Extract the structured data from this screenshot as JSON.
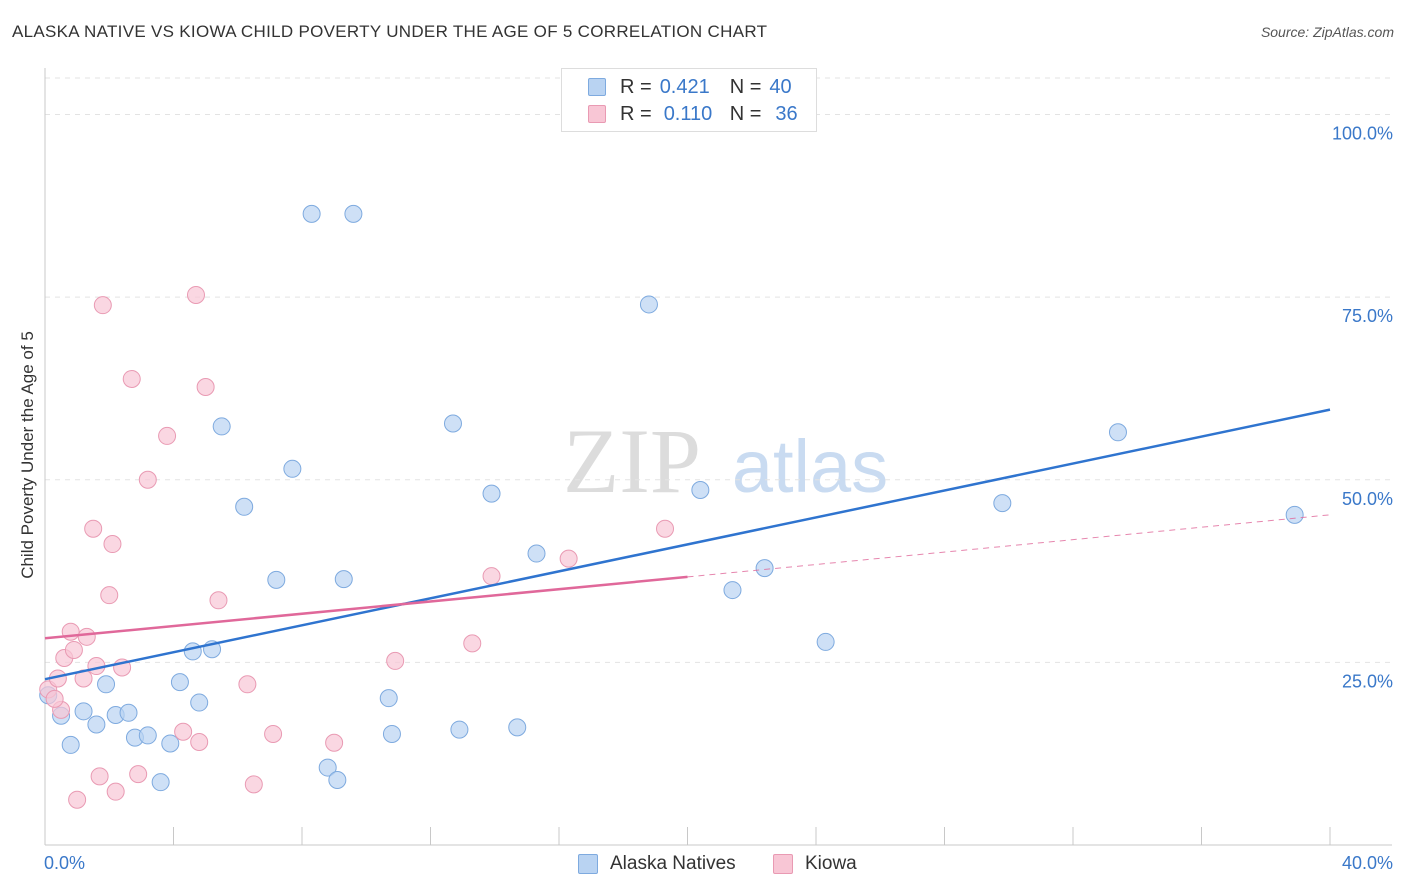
{
  "title": "ALASKA NATIVE VS KIOWA CHILD POVERTY UNDER THE AGE OF 5 CORRELATION CHART",
  "source": "Source: ZipAtlas.com",
  "watermark": {
    "zip": "ZIP",
    "atlas": "atlas"
  },
  "legend": {
    "rows": [
      {
        "r_label": "R =",
        "r_value": "0.421",
        "n_label": "N =",
        "n_value": "40"
      },
      {
        "r_label": "R =",
        "r_value": "0.110",
        "n_label": "N =",
        "n_value": "36"
      }
    ]
  },
  "colors": {
    "blue_fill": "#b9d3f2",
    "blue_stroke": "#7eaadf",
    "blue_line": "#2f74cf",
    "pink_fill": "#f8c6d5",
    "pink_stroke": "#e99ab3",
    "pink_line": "#e0689a",
    "axis_label": "#3a78c9"
  },
  "chart_data": {
    "type": "scatter",
    "title": "ALASKA NATIVE VS KIOWA CHILD POVERTY UNDER THE AGE OF 5 CORRELATION CHART",
    "xlabel": "",
    "ylabel": "Child Poverty Under the Age of 5",
    "xlim": [
      0,
      40
    ],
    "ylim": [
      0,
      105
    ],
    "x_tick_labels": [
      "0.0%",
      "40.0%"
    ],
    "y_ticks": [
      25,
      50,
      75,
      100
    ],
    "y_tick_labels": [
      "25.0%",
      "50.0%",
      "75.0%",
      "100.0%"
    ],
    "grid": true,
    "legend_position": "bottom-center",
    "series": [
      {
        "name": "Alaska Natives",
        "r": 0.421,
        "n": 40,
        "trend": {
          "x0": 0,
          "y0": 22.7,
          "x1": 40,
          "y1": 59.6
        },
        "points": [
          [
            0.1,
            20.5
          ],
          [
            0.5,
            17.7
          ],
          [
            0.8,
            13.7
          ],
          [
            1.2,
            18.3
          ],
          [
            1.6,
            16.5
          ],
          [
            1.9,
            22.0
          ],
          [
            2.2,
            17.8
          ],
          [
            2.6,
            18.1
          ],
          [
            2.8,
            14.7
          ],
          [
            3.2,
            15.0
          ],
          [
            3.6,
            8.6
          ],
          [
            3.9,
            13.9
          ],
          [
            4.2,
            22.3
          ],
          [
            4.6,
            26.5
          ],
          [
            4.8,
            19.5
          ],
          [
            5.2,
            26.8
          ],
          [
            5.5,
            57.3
          ],
          [
            6.2,
            46.3
          ],
          [
            7.2,
            36.3
          ],
          [
            7.7,
            51.5
          ],
          [
            8.3,
            86.4
          ],
          [
            8.8,
            10.6
          ],
          [
            9.1,
            8.9
          ],
          [
            9.3,
            36.4
          ],
          [
            9.6,
            86.4
          ],
          [
            10.7,
            20.1
          ],
          [
            10.8,
            15.2
          ],
          [
            12.7,
            57.7
          ],
          [
            12.9,
            15.8
          ],
          [
            13.9,
            48.1
          ],
          [
            14.7,
            16.1
          ],
          [
            15.3,
            39.9
          ],
          [
            18.8,
            74.0
          ],
          [
            20.4,
            48.6
          ],
          [
            21.4,
            34.9
          ],
          [
            22.4,
            37.9
          ],
          [
            24.3,
            27.8
          ],
          [
            29.8,
            46.8
          ],
          [
            33.4,
            56.5
          ],
          [
            38.9,
            45.2
          ]
        ]
      },
      {
        "name": "Kiowa",
        "r": 0.11,
        "n": 36,
        "trend": {
          "x0": 0,
          "y0": 28.3,
          "x1": 20,
          "y1": 36.7,
          "dashed_to_x": 40,
          "dashed_to_y": 45.2
        },
        "points": [
          [
            0.1,
            21.3
          ],
          [
            0.4,
            22.8
          ],
          [
            0.5,
            18.5
          ],
          [
            0.6,
            25.6
          ],
          [
            0.8,
            29.2
          ],
          [
            0.9,
            26.7
          ],
          [
            1.0,
            6.2
          ],
          [
            1.2,
            22.8
          ],
          [
            1.3,
            28.5
          ],
          [
            1.5,
            43.3
          ],
          [
            1.6,
            24.5
          ],
          [
            1.7,
            9.4
          ],
          [
            1.8,
            73.9
          ],
          [
            2.0,
            34.2
          ],
          [
            2.1,
            41.2
          ],
          [
            2.2,
            7.3
          ],
          [
            2.4,
            24.3
          ],
          [
            2.7,
            63.8
          ],
          [
            2.9,
            9.7
          ],
          [
            3.2,
            50.0
          ],
          [
            3.8,
            56.0
          ],
          [
            4.3,
            15.5
          ],
          [
            4.7,
            75.3
          ],
          [
            4.8,
            14.1
          ],
          [
            5.0,
            62.7
          ],
          [
            5.4,
            33.5
          ],
          [
            6.3,
            22.0
          ],
          [
            6.5,
            8.3
          ],
          [
            7.1,
            15.2
          ],
          [
            9.0,
            14.0
          ],
          [
            10.9,
            25.2
          ],
          [
            13.3,
            27.6
          ],
          [
            13.9,
            36.8
          ],
          [
            16.3,
            39.2
          ],
          [
            19.3,
            43.3
          ],
          [
            0.3,
            20.0
          ]
        ]
      }
    ]
  }
}
